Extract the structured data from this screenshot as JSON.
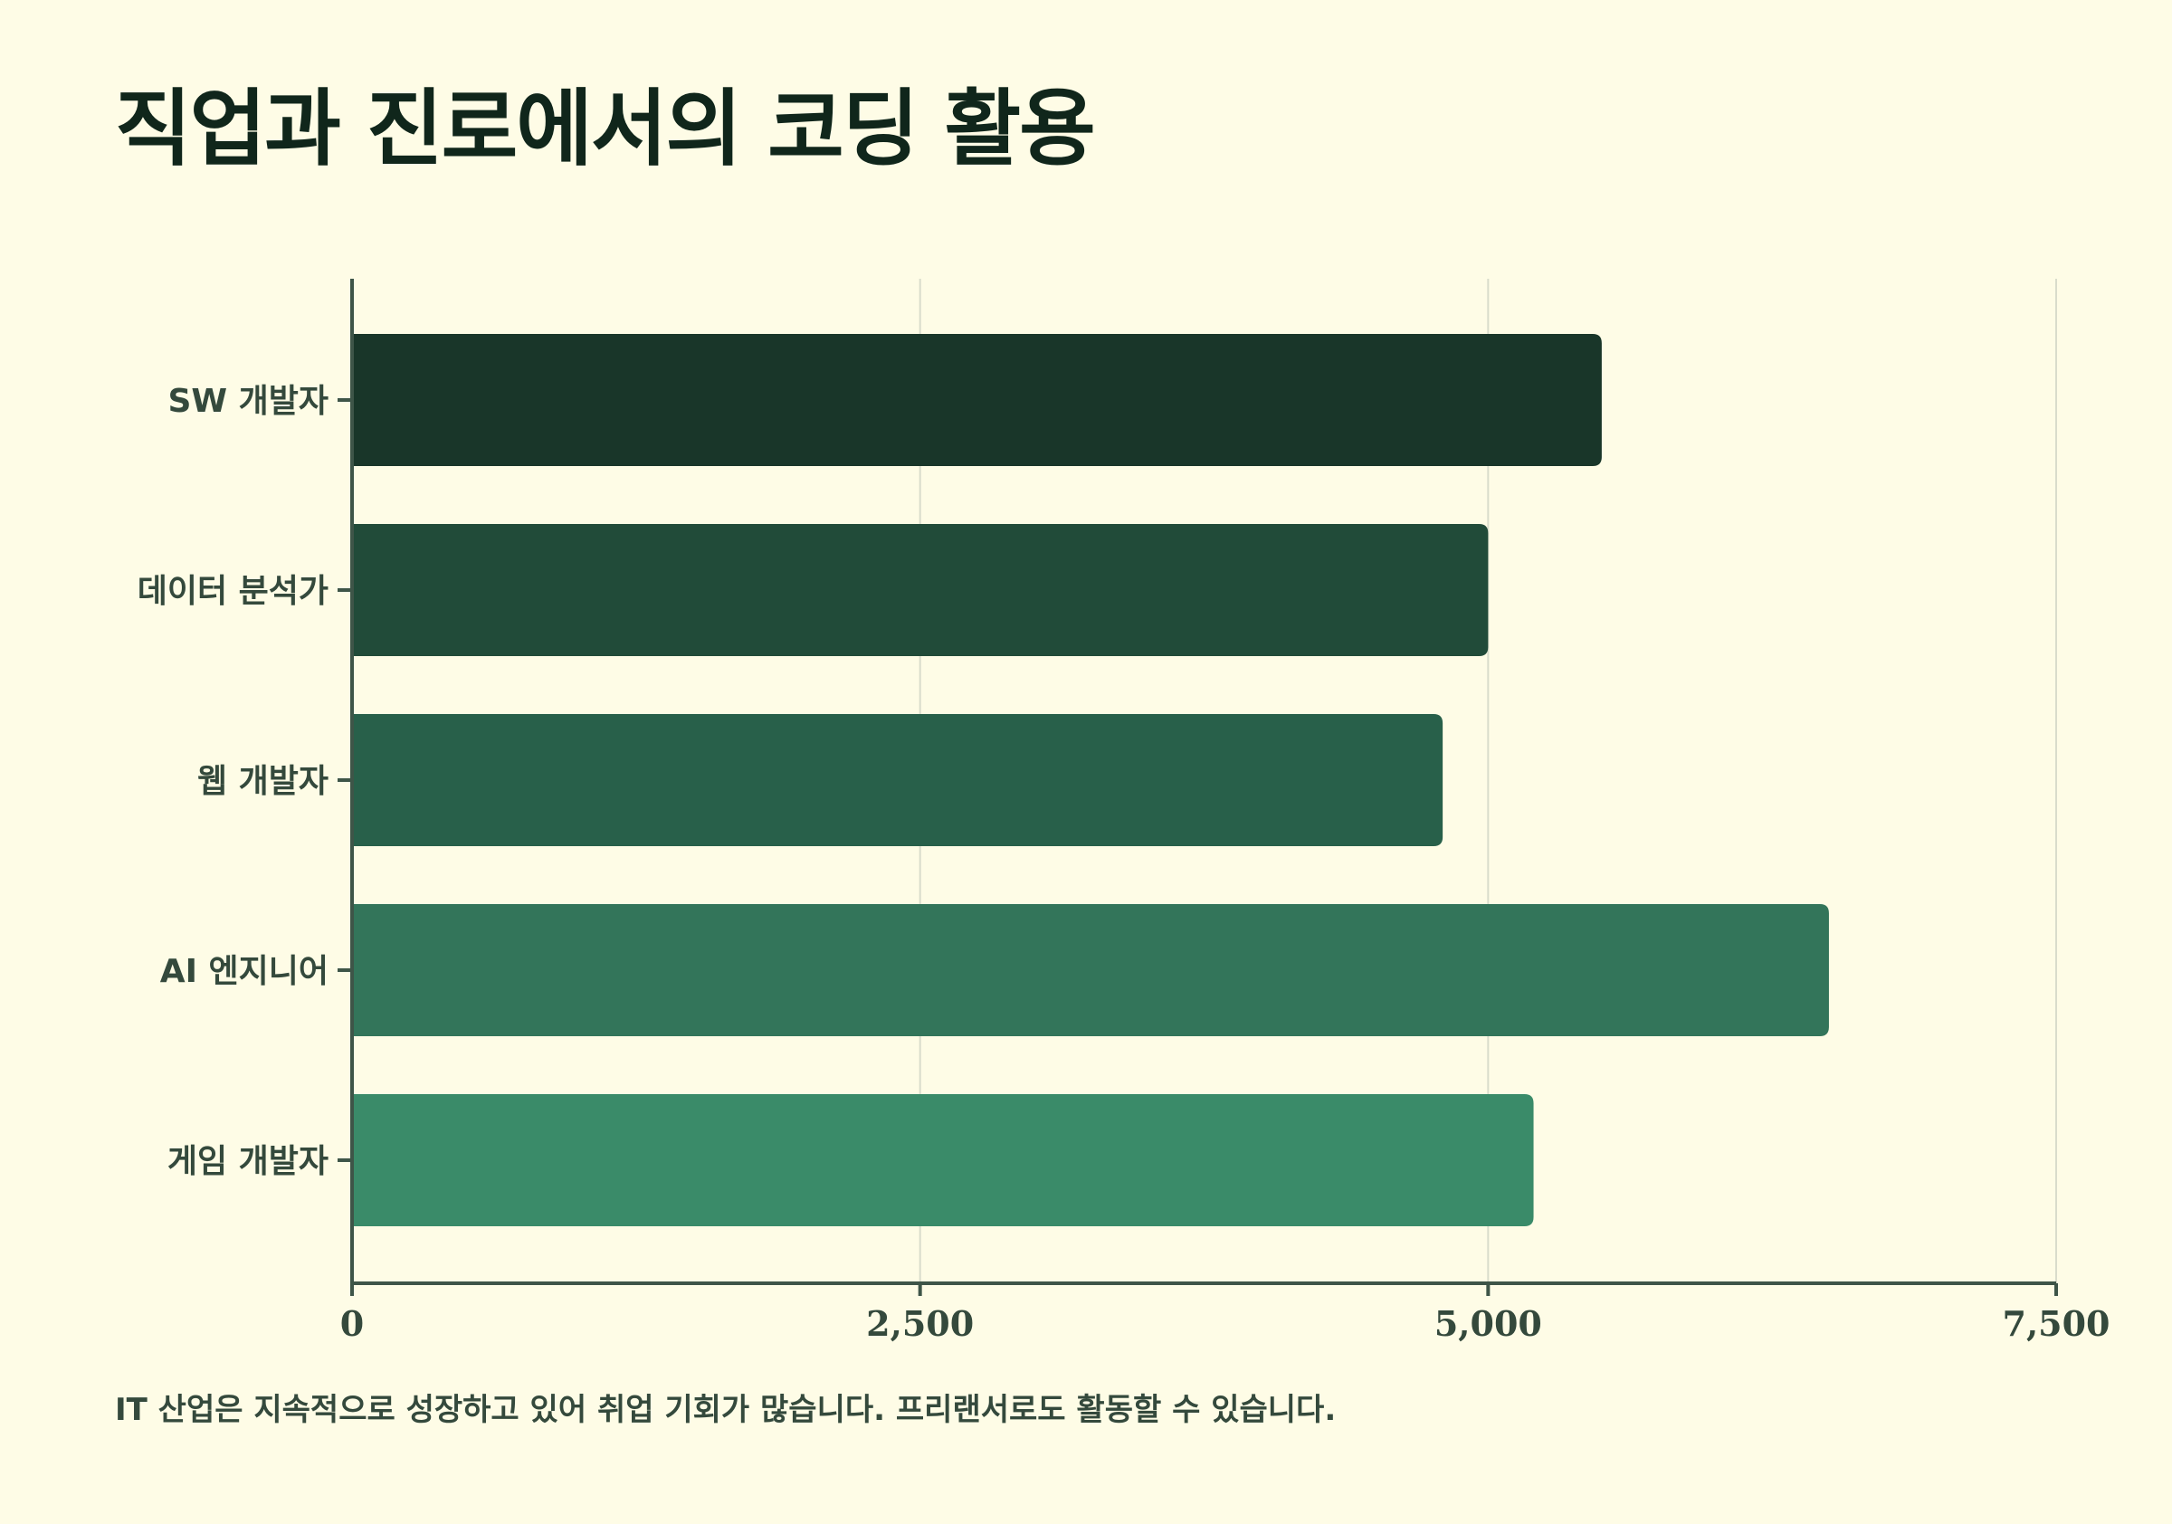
{
  "title": "직업과 진로에서의 코딩 활용",
  "caption": "IT 산업은 지속적으로 성장하고 있어 취업 기회가 많습니다. 프리랜서로도 활동할 수 있습니다.",
  "colors": {
    "background": "#fefce6",
    "axis": "#3e5548",
    "grid": "#d9dccb",
    "text": "#34493c"
  },
  "chart_data": {
    "type": "bar",
    "orientation": "horizontal",
    "categories": [
      "SW 개발자",
      "데이터 분석가",
      "웹 개발자",
      "AI 엔지니어",
      "게임 개발자"
    ],
    "values": [
      5500,
      5000,
      4800,
      6500,
      5200
    ],
    "bar_colors": [
      "#193629",
      "#214b39",
      "#28604a",
      "#33755a",
      "#3a8b69"
    ],
    "xlim": [
      0,
      7500
    ],
    "xticks": [
      0,
      2500,
      5000,
      7500
    ],
    "xtick_labels": [
      "0",
      "2,500",
      "5,000",
      "7,500"
    ],
    "grid": true,
    "xlabel": "",
    "ylabel": ""
  }
}
